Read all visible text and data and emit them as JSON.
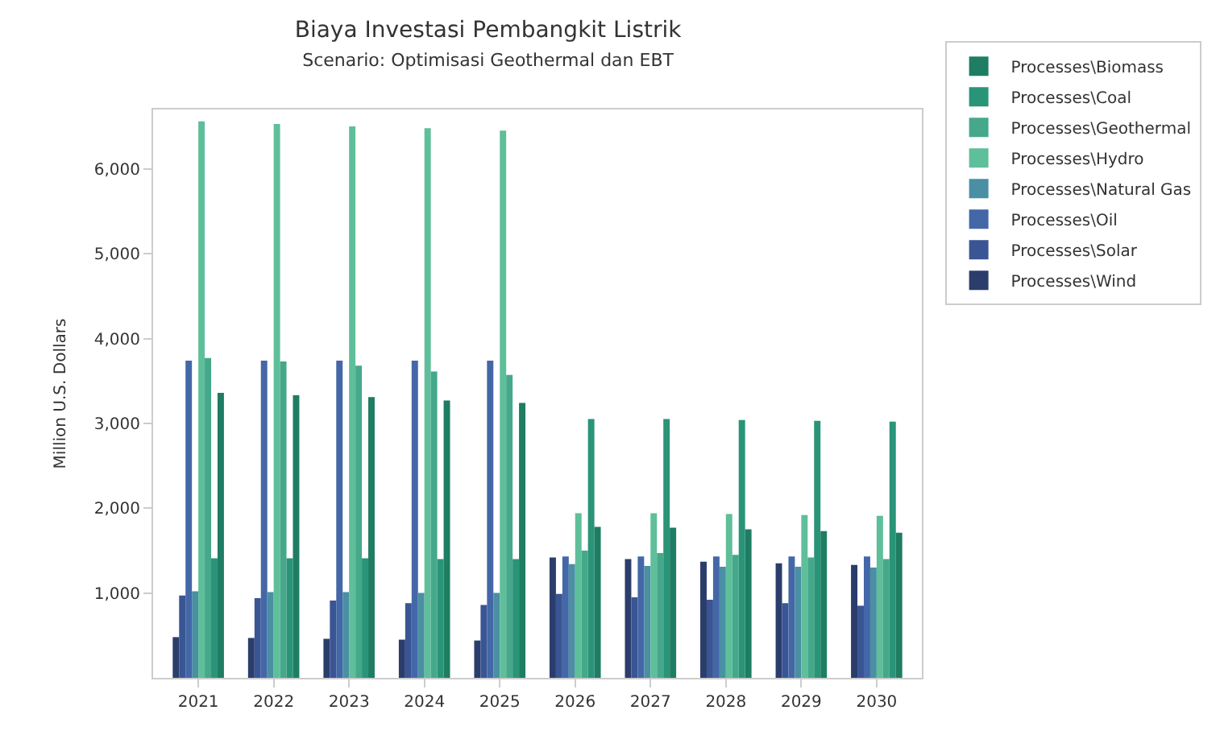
{
  "chart_data": {
    "type": "bar",
    "title": "Biaya Investasi Pembangkit Listrik",
    "subtitle": "Scenario: Optimisasi Geothermal dan EBT",
    "ylabel": "Million U.S. Dollars",
    "categories": [
      "2021",
      "2022",
      "2023",
      "2024",
      "2025",
      "2026",
      "2027",
      "2028",
      "2029",
      "2030"
    ],
    "ylim": [
      0,
      6700
    ],
    "yticks": [
      {
        "value": 1000,
        "label": "1,000"
      },
      {
        "value": 2000,
        "label": "2,000"
      },
      {
        "value": 3000,
        "label": "3,000"
      },
      {
        "value": 4000,
        "label": "4,000"
      },
      {
        "value": 5000,
        "label": "5,000"
      },
      {
        "value": 6000,
        "label": "6,000"
      }
    ],
    "legend": "top right",
    "series": [
      {
        "name": "Processes\\Wind",
        "color": "#2b3d6b",
        "values": [
          480,
          470,
          460,
          450,
          440,
          1420,
          1400,
          1370,
          1350,
          1330
        ]
      },
      {
        "name": "Processes\\Solar",
        "color": "#3a5594",
        "values": [
          970,
          940,
          910,
          880,
          860,
          990,
          950,
          920,
          880,
          850
        ]
      },
      {
        "name": "Processes\\Oil",
        "color": "#4467a8",
        "values": [
          3740,
          3740,
          3740,
          3740,
          3740,
          1430,
          1430,
          1430,
          1430,
          1430
        ]
      },
      {
        "name": "Processes\\Natural Gas",
        "color": "#4a8fa3",
        "values": [
          1020,
          1010,
          1010,
          1000,
          1000,
          1340,
          1320,
          1310,
          1310,
          1300
        ]
      },
      {
        "name": "Processes\\Hydro",
        "color": "#5ebf9a",
        "values": [
          6560,
          6530,
          6500,
          6480,
          6450,
          1940,
          1940,
          1930,
          1920,
          1910
        ]
      },
      {
        "name": "Processes\\Geothermal",
        "color": "#45a88a",
        "values": [
          3770,
          3730,
          3680,
          3610,
          3570,
          1500,
          1470,
          1450,
          1420,
          1400
        ]
      },
      {
        "name": "Processes\\Coal",
        "color": "#2a9478",
        "values": [
          1410,
          1410,
          1410,
          1400,
          1400,
          3050,
          3050,
          3040,
          3030,
          3020
        ]
      },
      {
        "name": "Processes\\Biomass",
        "color": "#1e7d62",
        "values": [
          3360,
          3330,
          3310,
          3270,
          3240,
          1780,
          1770,
          1750,
          1730,
          1710
        ]
      }
    ]
  }
}
